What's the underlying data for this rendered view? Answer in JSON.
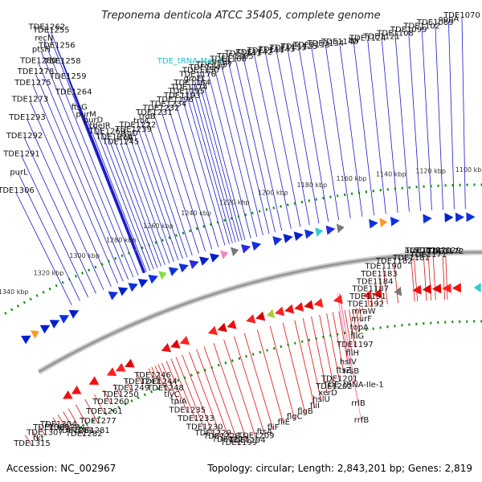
{
  "title": "Treponema denticola ATCC 35405, complete genome",
  "footer": {
    "accession": "Accession: NC_002967",
    "topology": "Topology: circular; Length: 2,843,201 bp; Genes: 2,819"
  },
  "colors": {
    "forward_labels": "#1a1acc",
    "reverse_labels": "#dd1111",
    "rna_forward": "#22bbcc",
    "rna_reverse": "#ee88bb",
    "scale_ticks": "#118811",
    "genome_backbone": "#999999"
  },
  "scale_marks": [
    "1100 kbp",
    "1120 kbp",
    "1140 kbp",
    "1160 kbp",
    "1180 kbp",
    "1200 kbp",
    "1220 kbp",
    "1240 kbp",
    "1260 kbp",
    "1280 kbp",
    "1300 kbp",
    "1320 kbp",
    "1340 kbp"
  ],
  "top_labels": [
    "TDE1070",
    "oppA",
    "TDE1089",
    "TDE1102",
    "TDE1099",
    "TDE1108",
    "TDE1121",
    "TDE1124",
    "tpl",
    "TDE1140",
    "TDE1134",
    "TDE1133",
    "TDE1125",
    "TDE1153",
    "TDE1143",
    "TDE1144",
    "TDE1142",
    "TDE1141",
    "TDE1185",
    "TDE1168",
    "pntB",
    "TDE1157",
    "TDE1147",
    "TDE1150",
    "TDE1176",
    "groEL",
    "TDE1164",
    "TDE1174",
    "TDE1195",
    "TDE1193",
    "TDE1196",
    "TDE1234",
    "TDE1232",
    "TDE1231",
    "troB",
    "troC",
    "TDE1222",
    "TDE1239",
    "troD",
    "troA",
    "TDE1245",
    "TDE1270",
    "TDE1269",
    "tdeIR",
    "purD",
    "purM",
    "ftsG",
    "TDE1264",
    "TDE1259",
    "TDE1258",
    "TDE1256",
    "TDE1255",
    "TDE1262",
    "recN",
    "ptsH",
    "TDE1280",
    "TDE1278",
    "TDE1275",
    "TDE1273",
    "TDE1293",
    "TDE1292",
    "TDE1291",
    "purL",
    "TDE1306"
  ],
  "trna_top": "TDE_tRNA-Met-1",
  "bottom_labels": [
    "aroC",
    "TDE1131",
    "TDE1170",
    "TDE1129",
    "TDE1172",
    "TDE1171",
    "TDE1181",
    "TDE1182",
    "TDE1190",
    "TDE1183",
    "TDE1184",
    "TDE1187",
    "TDE1191",
    "TDE1192",
    "mraW",
    "murF",
    "topA",
    "fliG",
    "TDE1197",
    "fliH",
    "hslV",
    "ftsZ",
    "TDE1201",
    "TDE1202",
    "xerD",
    "hslU",
    "fliI",
    "flgB",
    "flgC",
    "fliE",
    "fliF",
    "ftsA",
    "TDE1209",
    "TDE1194",
    "TDE1199",
    "TDE1227",
    "TDE1228",
    "TDE1229",
    "TDE1230",
    "TDE1233",
    "TDE1235",
    "tpiA",
    "tlyC",
    "TDE1248",
    "TDE1244",
    "TDE1246",
    "TDE1247",
    "TDE1249",
    "TDE1250",
    "TDE1260",
    "TDE1261",
    "TDE1277",
    "TDE1281",
    "TDE1282",
    "TDE1283",
    "TDE1284",
    "TDE1304",
    "TDE1305",
    "TDE1307",
    "tkt",
    "TDE1315"
  ],
  "rna_bottom_labels": [
    "rrsB",
    "TDE_tRNA-Ile-1",
    "rrlB",
    "rrfB"
  ]
}
